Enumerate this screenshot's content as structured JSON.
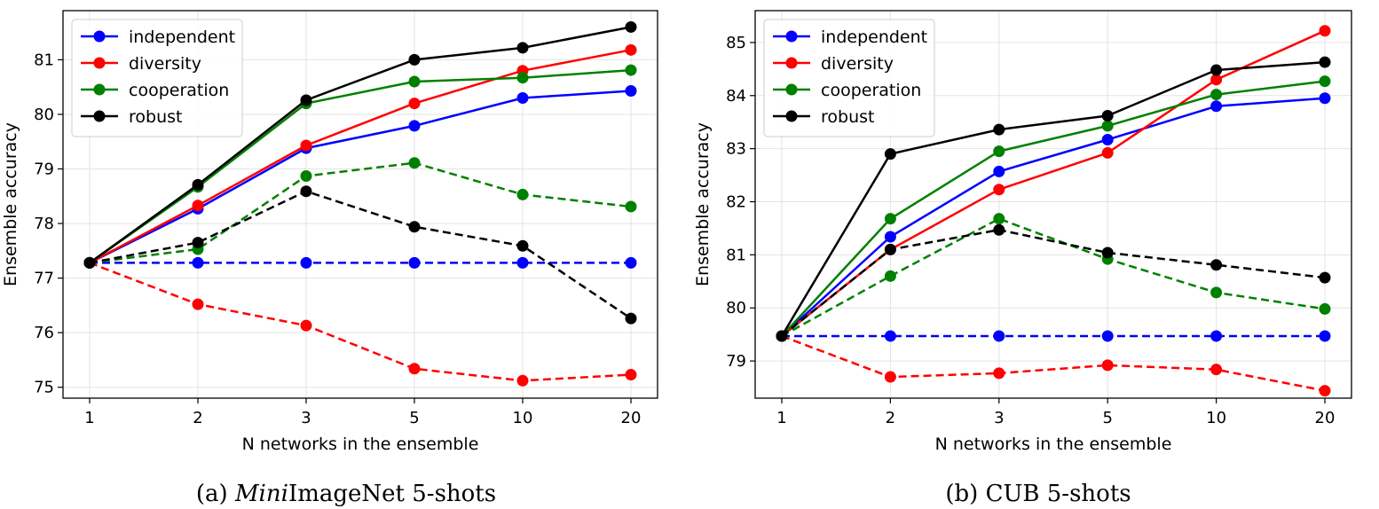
{
  "chart_data": [
    {
      "type": "line",
      "caption_prefix": "(a) ",
      "caption_italic": "Mini",
      "caption_rest": "ImageNet 5-shots",
      "xlabel": "N networks in the ensemble",
      "ylabel": "Ensemble accuracy",
      "categories": [
        "1",
        "2",
        "3",
        "5",
        "10",
        "20"
      ],
      "yticks": [
        75,
        76,
        77,
        78,
        79,
        80,
        81
      ],
      "ylim": [
        74.8,
        81.9
      ],
      "grid": true,
      "legend_position": "top-left",
      "legend": [
        "independent",
        "diversity",
        "cooperation",
        "robust"
      ],
      "series": [
        {
          "name": "independent",
          "color": "#0000ff",
          "dashed": false,
          "values": [
            77.28,
            78.27,
            79.38,
            79.79,
            80.3,
            80.43
          ]
        },
        {
          "name": "diversity",
          "color": "#ff0000",
          "dashed": false,
          "values": [
            77.28,
            78.33,
            79.43,
            80.2,
            80.8,
            81.18
          ]
        },
        {
          "name": "cooperation",
          "color": "#008000",
          "dashed": false,
          "values": [
            77.28,
            78.67,
            80.2,
            80.6,
            80.67,
            80.81
          ]
        },
        {
          "name": "robust",
          "color": "#000000",
          "dashed": false,
          "values": [
            77.28,
            78.71,
            80.26,
            81.0,
            81.22,
            81.6
          ]
        },
        {
          "color": "#0000ff",
          "dashed": true,
          "values": [
            77.28,
            77.28,
            77.28,
            77.28,
            77.28,
            77.28
          ]
        },
        {
          "color": "#ff0000",
          "dashed": true,
          "values": [
            77.28,
            76.52,
            76.13,
            75.34,
            75.12,
            75.23
          ]
        },
        {
          "color": "#008000",
          "dashed": true,
          "values": [
            77.28,
            77.53,
            78.87,
            79.11,
            78.53,
            78.31
          ]
        },
        {
          "color": "#000000",
          "dashed": true,
          "values": [
            77.28,
            77.65,
            78.59,
            77.94,
            77.59,
            76.26
          ]
        }
      ]
    },
    {
      "type": "line",
      "caption_prefix": "(b) ",
      "caption_italic": "",
      "caption_rest": "CUB 5-shots",
      "xlabel": "N networks in the ensemble",
      "ylabel": "Ensemble accuracy",
      "categories": [
        "1",
        "2",
        "3",
        "5",
        "10",
        "20"
      ],
      "yticks": [
        79,
        80,
        81,
        82,
        83,
        84,
        85
      ],
      "ylim": [
        78.3,
        85.6
      ],
      "grid": true,
      "legend_position": "top-left",
      "legend": [
        "independent",
        "diversity",
        "cooperation",
        "robust"
      ],
      "series": [
        {
          "name": "independent",
          "color": "#0000ff",
          "dashed": false,
          "values": [
            79.47,
            81.34,
            82.57,
            83.17,
            83.8,
            83.95
          ]
        },
        {
          "name": "diversity",
          "color": "#ff0000",
          "dashed": false,
          "values": [
            79.47,
            81.1,
            82.23,
            82.92,
            84.3,
            85.22
          ]
        },
        {
          "name": "cooperation",
          "color": "#008000",
          "dashed": false,
          "values": [
            79.47,
            81.68,
            82.95,
            83.43,
            84.02,
            84.27
          ]
        },
        {
          "name": "robust",
          "color": "#000000",
          "dashed": false,
          "values": [
            79.47,
            82.9,
            83.36,
            83.62,
            84.48,
            84.63
          ]
        },
        {
          "color": "#0000ff",
          "dashed": true,
          "values": [
            79.47,
            79.47,
            79.47,
            79.47,
            79.47,
            79.47
          ]
        },
        {
          "color": "#ff0000",
          "dashed": true,
          "values": [
            79.47,
            78.7,
            78.77,
            78.92,
            78.84,
            78.44
          ]
        },
        {
          "color": "#008000",
          "dashed": true,
          "values": [
            79.47,
            80.6,
            81.68,
            80.92,
            80.29,
            79.98
          ]
        },
        {
          "color": "#000000",
          "dashed": true,
          "values": [
            79.47,
            81.1,
            81.47,
            81.04,
            80.81,
            80.57
          ]
        }
      ]
    }
  ]
}
